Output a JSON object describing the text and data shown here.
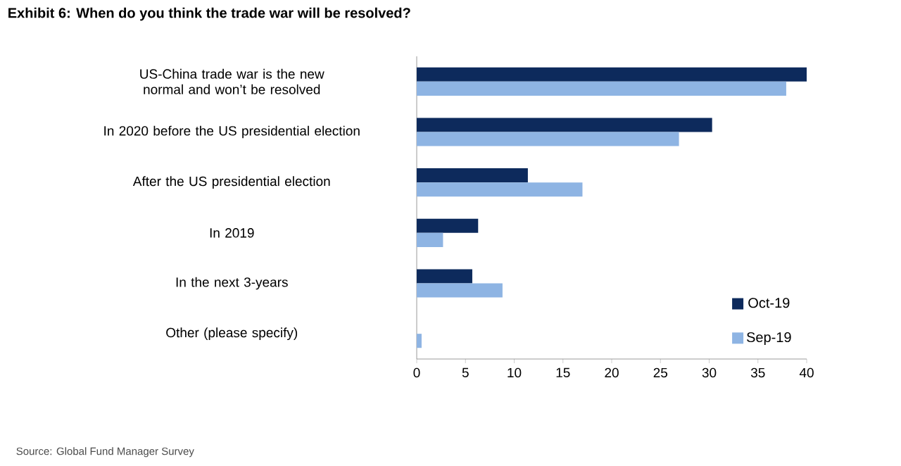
{
  "chart_data": {
    "type": "bar",
    "orientation": "horizontal",
    "title": "Exhibit 6: When do you think the trade war will be resolved?",
    "categories": [
      "US-China trade war is the new normal and won’t be resolved",
      "In 2020 before the US presidential election",
      "After the US presidential election",
      "In 2019",
      "In the next 3-years",
      "Other (please specify)"
    ],
    "series": [
      {
        "name": "Oct-19",
        "color": "#0d2a5c",
        "values": [
          40,
          30.3,
          11.4,
          6.3,
          5.7,
          0
        ]
      },
      {
        "name": "Sep-19",
        "color": "#8eb4e3",
        "values": [
          37.9,
          26.9,
          17.0,
          2.7,
          8.8,
          0.5
        ]
      }
    ],
    "xlim": [
      0,
      40
    ],
    "xticks": [
      0,
      5,
      10,
      15,
      20,
      25,
      30,
      35,
      40
    ],
    "grid": false,
    "legend": "bottom right",
    "annotations": [
      "Source: Global Fund Manager Survey"
    ]
  }
}
